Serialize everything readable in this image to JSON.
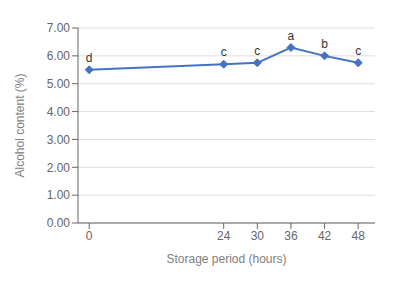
{
  "chart_data": {
    "type": "line",
    "x": [
      0,
      24,
      30,
      36,
      42,
      48
    ],
    "values": [
      5.5,
      5.7,
      5.75,
      6.3,
      6.0,
      5.75
    ],
    "annotations": [
      "d",
      "c",
      "c",
      "a",
      "b",
      "c"
    ],
    "xlabel": "Storage period (hours)",
    "ylabel": "Alcohol content (%)",
    "xlim": [
      -2,
      51
    ],
    "xticks": [
      0,
      24,
      30,
      36,
      42,
      48
    ],
    "ylim": [
      0.0,
      7.0
    ],
    "yticks": [
      {
        "value": 0.0,
        "label": "0.00"
      },
      {
        "value": 1.0,
        "label": "1.00"
      },
      {
        "value": 2.0,
        "label": "2.00"
      },
      {
        "value": 3.0,
        "label": "3.00"
      },
      {
        "value": 4.0,
        "label": "4.00"
      },
      {
        "value": 5.0,
        "label": "5.00"
      },
      {
        "value": 6.0,
        "label": "6.00"
      },
      {
        "value": 7.0,
        "label": "7.00"
      }
    ],
    "color": "#4472C4",
    "marker": "diamond",
    "grid": "y"
  }
}
